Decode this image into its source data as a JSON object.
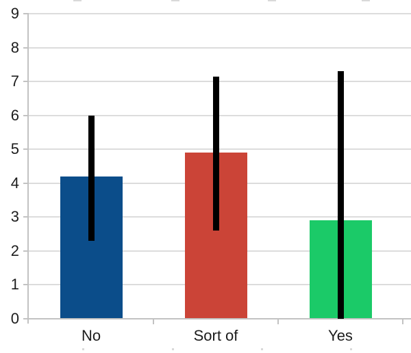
{
  "chart_data": {
    "type": "bar",
    "categories": [
      "No",
      "Sort of",
      "Yes"
    ],
    "values": [
      4.2,
      4.9,
      2.9
    ],
    "error_bars": [
      {
        "low": 2.3,
        "high": 6.0
      },
      {
        "low": 2.6,
        "high": 7.15
      },
      {
        "low": 0.0,
        "high": 7.3
      }
    ],
    "bar_colors": [
      "#0b4d8a",
      "#cb4437",
      "#1bca68"
    ],
    "error_bar_color": "#000000",
    "ylim": [
      0,
      9
    ],
    "ytick_step": 1,
    "ytick_labels": [
      "0",
      "1",
      "2",
      "3",
      "4",
      "5",
      "6",
      "7",
      "8",
      "9"
    ],
    "grid": true,
    "legend": false,
    "xlabel": "",
    "ylabel": "",
    "gridline_color": "#dcdcdc",
    "axis_line_color": "#c2c2c2",
    "label_color": "#1c1c1c",
    "background_color": "#ffffff"
  }
}
